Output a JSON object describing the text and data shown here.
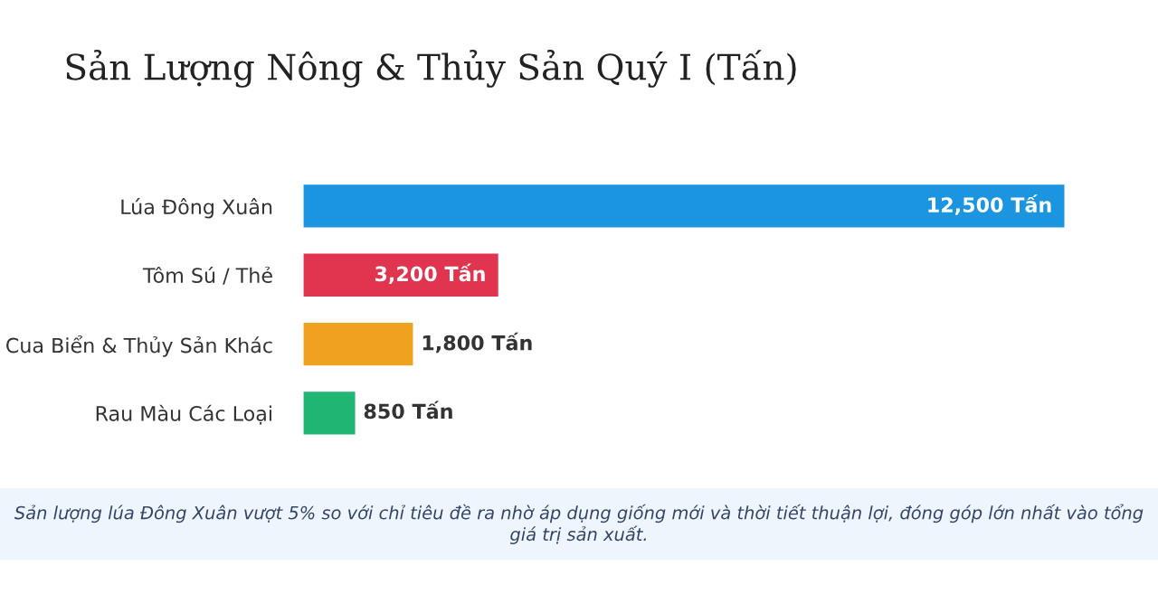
{
  "chart_data": {
    "type": "bar",
    "orientation": "horizontal",
    "title": "Sản Lượng Nông & Thủy Sản Quý I (Tấn)",
    "categories": [
      "Lúa Đông Xuân",
      "Tôm Sú / Thẻ",
      "Cua Biển & Thủy Sản Khác",
      "Rau Màu Các Loại"
    ],
    "values": [
      12500,
      3200,
      1800,
      850
    ],
    "colors": [
      "#1c95e0",
      "#e0344f",
      "#eea21f",
      "#21b574"
    ],
    "value_labels": [
      "12,500 Tấn",
      "3,200 Tấn",
      "1,800 Tấn",
      "850 Tấn"
    ],
    "annotations": [
      "Sản lượng lúa Đông Xuân vượt 5% so với chỉ tiêu đề ra nhờ áp dụng giống mới và thời tiết thuận lợi, đóng góp lớn nhất vào tổng giá trị sản xuất."
    ]
  }
}
